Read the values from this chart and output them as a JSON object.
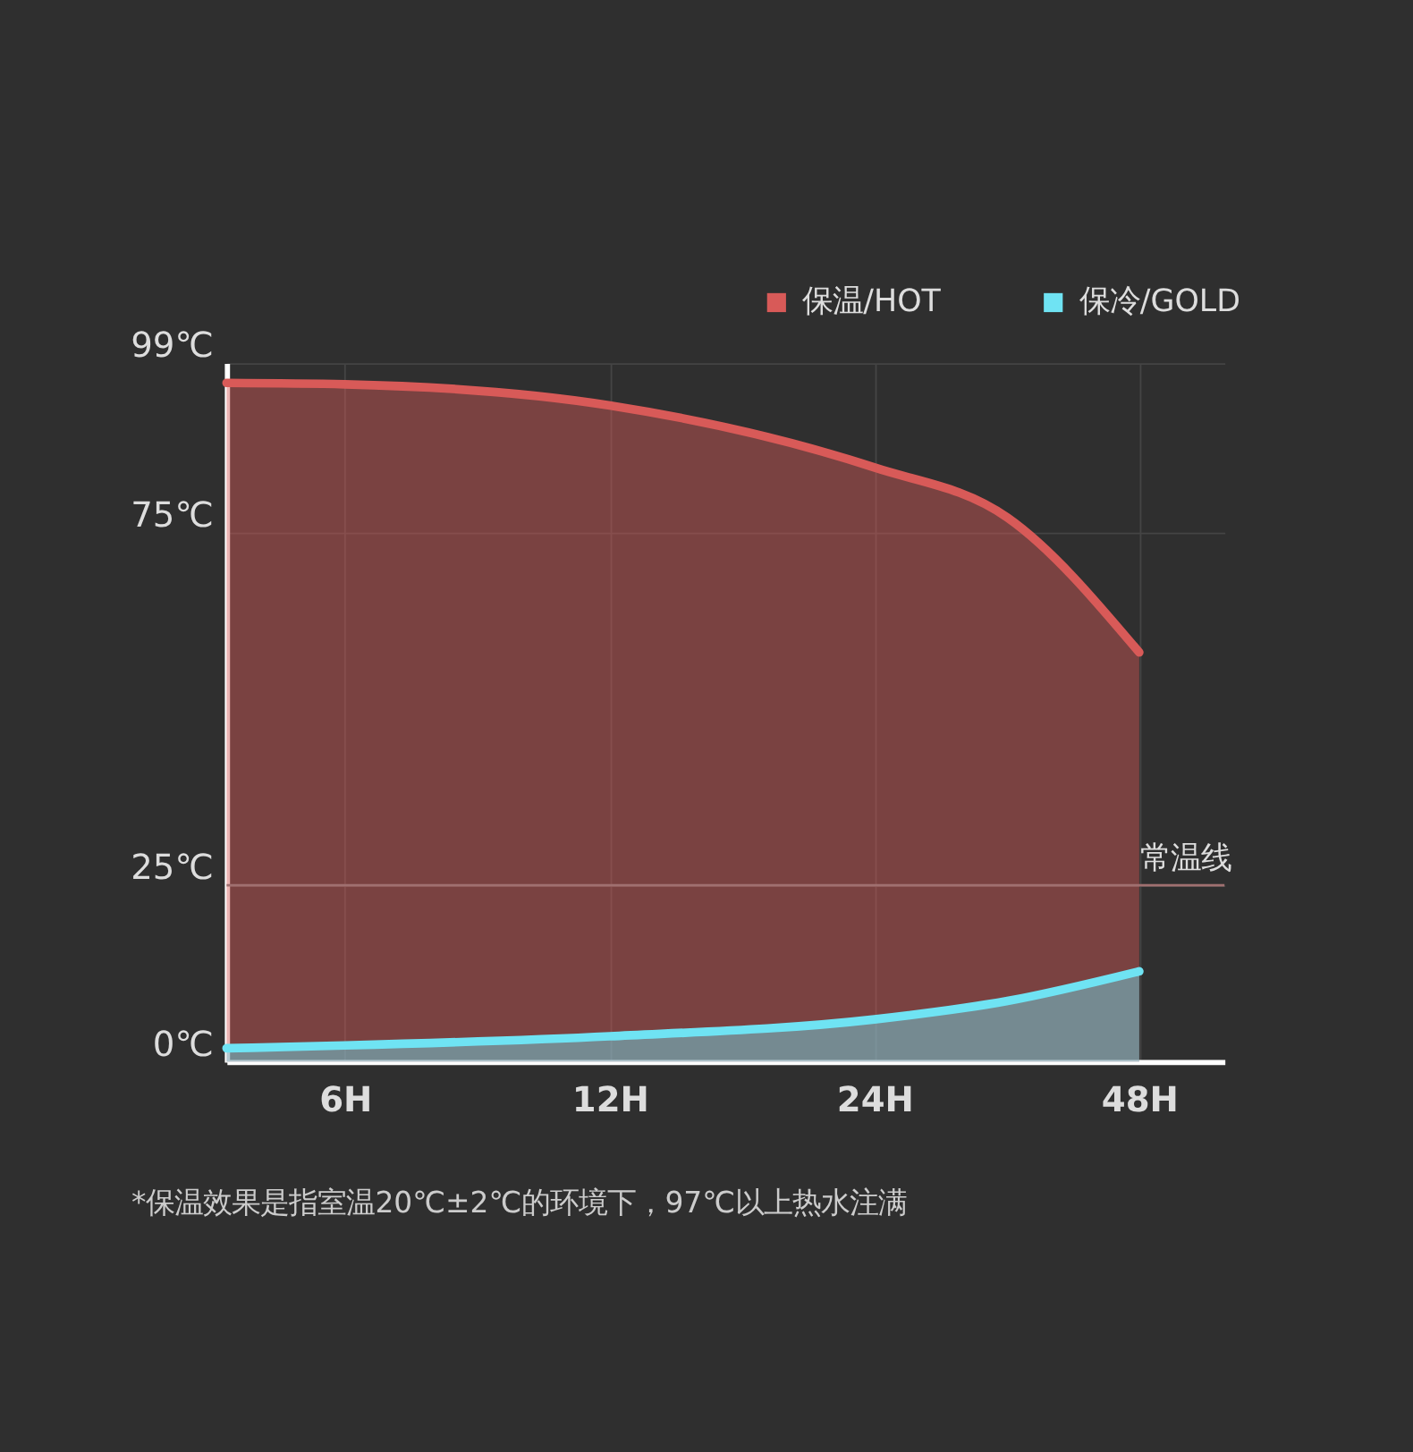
{
  "chart_data": {
    "type": "area",
    "x": [
      4.4,
      6,
      12,
      24,
      34,
      48
    ],
    "series": [
      {
        "name": "保温/HOT",
        "color": "#d85a58",
        "values": [
          96.2,
          96,
          93,
          84.2,
          77.1,
          58
        ]
      },
      {
        "name": "保冷/GOLD",
        "color": "#6fe3f3",
        "values": [
          1.9,
          2.3,
          3.6,
          6,
          8.6,
          12.8
        ]
      }
    ],
    "xlim": [
      4.4,
      60
    ],
    "log": "x",
    "xticks": [
      {
        "value": 6,
        "label": "6H"
      },
      {
        "value": 12,
        "label": "12H"
      },
      {
        "value": 24,
        "label": "24H"
      },
      {
        "value": 48,
        "label": "48H"
      }
    ],
    "ylim": [
      0,
      99
    ],
    "yticks": [
      {
        "value": 0,
        "label": "0℃"
      },
      {
        "value": 25,
        "label": "25℃"
      },
      {
        "value": 75,
        "label": "75℃"
      },
      {
        "value": 99,
        "label": "99℃"
      }
    ],
    "ref_lines": [
      {
        "axis": "y",
        "value": 25,
        "label": "常温线",
        "color": "#a07070"
      }
    ],
    "annotations": [
      "*保温效果是指室温20℃±2℃的环境下，97℃以上热水注满"
    ],
    "grid": true,
    "legend": "top right",
    "line_style": "solid",
    "marker": "none"
  }
}
